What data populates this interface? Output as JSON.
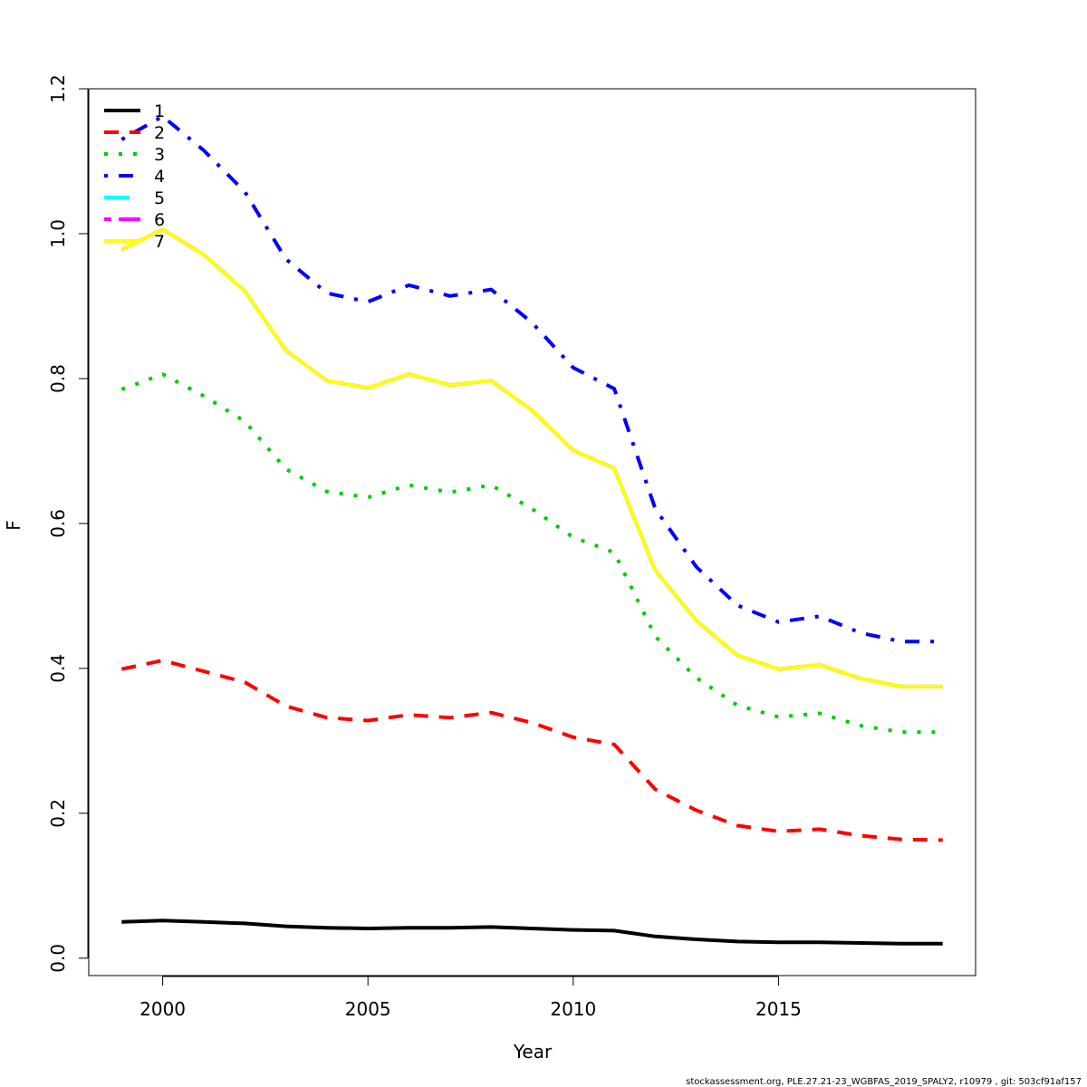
{
  "chart_data": {
    "type": "line",
    "title": "",
    "xlabel": "Year",
    "ylabel": "F",
    "xlim": [
      1998.2,
      2019.8
    ],
    "ylim": [
      -0.024,
      1.2
    ],
    "xticks": [
      "2000",
      "2005",
      "2010",
      "2015"
    ],
    "xtick_values": [
      2000,
      2005,
      2010,
      2015
    ],
    "yticks": [
      "0.0",
      "0.2",
      "0.4",
      "0.6",
      "0.8",
      "1.0",
      "1.2"
    ],
    "ytick_values": [
      0.0,
      0.2,
      0.4,
      0.6,
      0.8,
      1.0,
      1.2
    ],
    "grid": false,
    "legend_position": "top-left",
    "x": [
      1999,
      2000,
      2001,
      2002,
      2003,
      2004,
      2005,
      2006,
      2007,
      2008,
      2009,
      2010,
      2011,
      2012,
      2013,
      2014,
      2015,
      2016,
      2017,
      2018,
      2019
    ],
    "series": [
      {
        "name": "1",
        "color": "#000000",
        "dash": "solid",
        "values": [
          0.05,
          0.052,
          0.05,
          0.048,
          0.044,
          0.042,
          0.041,
          0.042,
          0.042,
          0.043,
          0.041,
          0.039,
          0.038,
          0.03,
          0.026,
          0.023,
          0.022,
          0.022,
          0.021,
          0.02,
          0.02
        ]
      },
      {
        "name": "2",
        "color": "#ff0000",
        "dash": "dashed",
        "values": [
          0.399,
          0.411,
          0.396,
          0.381,
          0.348,
          0.332,
          0.328,
          0.336,
          0.332,
          0.339,
          0.325,
          0.305,
          0.295,
          0.233,
          0.204,
          0.183,
          0.175,
          0.178,
          0.169,
          0.164,
          0.163
        ]
      },
      {
        "name": "3",
        "color": "#00cd00",
        "dash": "dotted",
        "values": [
          0.785,
          0.806,
          0.776,
          0.741,
          0.675,
          0.644,
          0.636,
          0.653,
          0.643,
          0.653,
          0.62,
          0.581,
          0.56,
          0.444,
          0.387,
          0.349,
          0.333,
          0.338,
          0.321,
          0.312,
          0.312
        ]
      },
      {
        "name": "4",
        "color": "#0000ff",
        "dash": "dotdash",
        "values": [
          1.13,
          1.162,
          1.115,
          1.058,
          0.965,
          0.918,
          0.906,
          0.929,
          0.914,
          0.923,
          0.877,
          0.815,
          0.786,
          0.62,
          0.54,
          0.487,
          0.464,
          0.472,
          0.449,
          0.437,
          0.437
        ]
      },
      {
        "name": "5",
        "color": "#00ffff",
        "dash": "longdash",
        "values": [
          0.978,
          1.006,
          0.971,
          0.921,
          0.839,
          0.797,
          0.787,
          0.806,
          0.791,
          0.797,
          0.756,
          0.701,
          0.676,
          0.535,
          0.466,
          0.418,
          0.399,
          0.405,
          0.386,
          0.375,
          0.375
        ]
      },
      {
        "name": "6",
        "color": "#ff00ff",
        "dash": "twodash",
        "values": [
          0.978,
          1.006,
          0.971,
          0.921,
          0.839,
          0.797,
          0.787,
          0.806,
          0.791,
          0.797,
          0.756,
          0.701,
          0.676,
          0.535,
          0.466,
          0.418,
          0.399,
          0.405,
          0.386,
          0.375,
          0.375
        ]
      },
      {
        "name": "7",
        "color": "#ffff00",
        "dash": "solid",
        "values": [
          0.978,
          1.006,
          0.971,
          0.921,
          0.839,
          0.797,
          0.787,
          0.806,
          0.791,
          0.797,
          0.756,
          0.701,
          0.676,
          0.535,
          0.466,
          0.418,
          0.399,
          0.405,
          0.386,
          0.375,
          0.375
        ]
      }
    ]
  },
  "footer": {
    "text": "stockassessment.org, PLE.27.21-23_WGBFAS_2019_SPALY2, r10979 , git: 503cf91af157"
  }
}
